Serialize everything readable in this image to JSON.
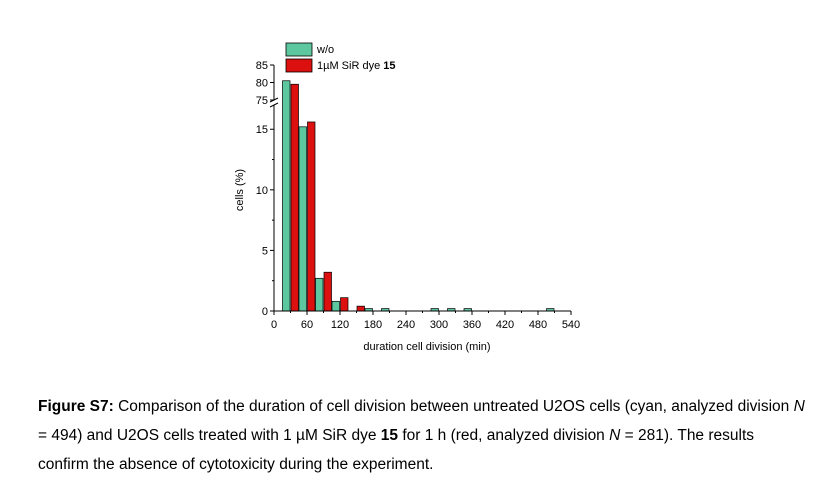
{
  "chart_data": {
    "type": "bar",
    "xlabel": "duration cell division (min)",
    "ylabel": "cells (%)",
    "x_ticks": [
      0,
      60,
      120,
      180,
      240,
      300,
      360,
      420,
      480,
      540
    ],
    "y_ticks_lower": [
      0,
      5,
      10,
      15
    ],
    "y_ticks_upper": [
      75,
      80,
      85
    ],
    "ylim_lower": [
      0,
      17
    ],
    "ylim_upper": [
      75,
      85
    ],
    "axis_break": true,
    "legend_position": "top",
    "bin_centers": [
      30,
      60,
      90,
      120,
      150,
      180,
      210,
      240,
      270,
      300,
      330,
      360,
      390,
      420,
      450,
      480,
      510
    ],
    "series": [
      {
        "name": "w/o",
        "color": "#5dc7a0",
        "values": [
          80.5,
          15.2,
          2.7,
          0.8,
          0.0,
          0.2,
          0.2,
          0.0,
          0.0,
          0.2,
          0.2,
          0.2,
          0.0,
          0.0,
          0.0,
          0.0,
          0.2
        ]
      },
      {
        "name_prefix": "1µM SiR dye ",
        "name_bold": "15",
        "color": "#dd1010",
        "values": [
          79.5,
          15.6,
          3.2,
          1.1,
          0.4,
          0.0,
          0.0,
          0.0,
          0.0,
          0.0,
          0.0,
          0.0,
          0.0,
          0.0,
          0.0,
          0.0,
          0.0
        ]
      }
    ]
  },
  "caption": {
    "label": "Figure S7:",
    "seg1": " Comparison of the duration of cell division between untreated U2OS cells (cyan, analyzed division ",
    "n1_var": "N",
    "n1_val": " = 494) and U2OS cells treated with 1 µM SiR dye ",
    "dye_num": "15",
    "seg2": " for 1 h (red, analyzed division ",
    "n2_var": "N",
    "n2_val": " = 281). The results confirm the absence of cytotoxicity during the experiment."
  }
}
